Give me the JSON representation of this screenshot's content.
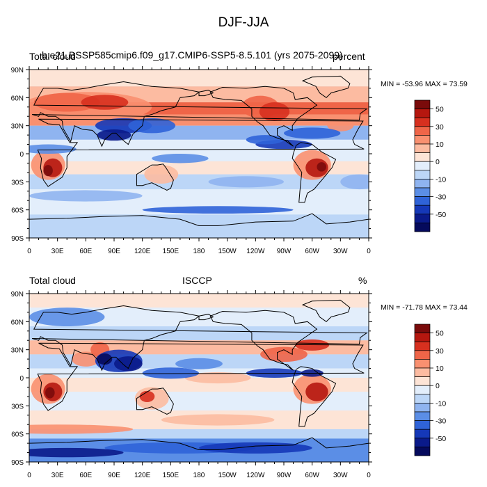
{
  "figure": {
    "title": "DJF-JJA"
  },
  "panels": [
    {
      "id": "model",
      "left_label": "Total cloud",
      "center_label": "b.e21.BSSP585cmip6.f09_g17.CMIP6-SSP5-8.5.101 (yrs 2075-2099)",
      "right_label": "percent",
      "minmax": "MIN = -53.96 MAX =  73.59"
    },
    {
      "id": "obs",
      "left_label": "Total cloud",
      "center_label": "ISCCP",
      "right_label": "%",
      "minmax": "MIN = -71.78 MAX =  73.44"
    }
  ],
  "axes": {
    "lat_ticks": [
      "90N",
      "60N",
      "30N",
      "0",
      "30S",
      "60S",
      "90S"
    ],
    "lon_ticks": [
      "0",
      "30E",
      "60E",
      "90E",
      "120E",
      "150E",
      "180",
      "150W",
      "120W",
      "90W",
      "60W",
      "30W",
      "0"
    ]
  },
  "colorbar": {
    "labels": [
      "50",
      "30",
      "10",
      "0",
      "-10",
      "-30",
      "-50"
    ],
    "colors": [
      "#7a0b0b",
      "#b5170f",
      "#d7301f",
      "#ef6548",
      "#f99070",
      "#fcbba1",
      "#fde4d6",
      "#e3eefb",
      "#bcd6f7",
      "#8fb4f0",
      "#5b8ee6",
      "#2f63d8",
      "#1538b8",
      "#0a1a8a",
      "#050a5c"
    ]
  },
  "colors": {
    "ocean_base": "#dcebfb",
    "land_line": "#000000"
  }
}
